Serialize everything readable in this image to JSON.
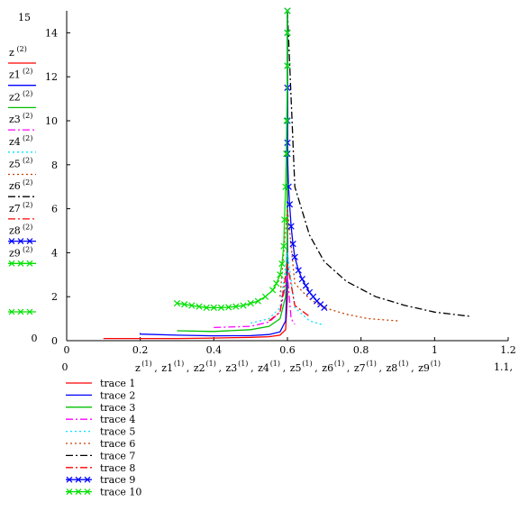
{
  "chart_data": {
    "type": "line",
    "xlim": [
      0,
      1.2
    ],
    "ylim": [
      0,
      15
    ],
    "x_ticks": [
      "0",
      "0.2",
      "0.4",
      "0.6",
      "0.8",
      "1",
      "1.2"
    ],
    "x_tick_values": [
      0,
      0.2,
      0.4,
      0.6,
      0.8,
      1.0,
      1.2
    ],
    "y_ticks": [
      "0",
      "2",
      "4",
      "6",
      "8",
      "10",
      "12",
      "14"
    ],
    "y_tick_values": [
      0,
      2,
      4,
      6,
      8,
      10,
      12,
      14
    ],
    "y_top_label": "15",
    "x_min_label": "0",
    "x_extra_label": "1.1,",
    "xlabel_names": [
      "z",
      "z1",
      "z2",
      "z3",
      "z4",
      "z5",
      "z6",
      "z7",
      "z8",
      "z9"
    ],
    "xlabel_sup": "(1)",
    "ylabel_names": [
      "z",
      "z1",
      "z2",
      "z3",
      "z4",
      "z5",
      "z6",
      "z7",
      "z8",
      "z9"
    ],
    "ylabel_sup": "(2)",
    "grid": false,
    "legend_placement": "bottom-left",
    "series": [
      {
        "name": "trace 1",
        "color": "#ff0000",
        "dash": "solid",
        "marker": "none",
        "x": [
          0.1,
          0.2,
          0.3,
          0.4,
          0.5,
          0.55,
          0.58,
          0.595,
          0.6,
          0.6,
          0.6
        ],
        "y": [
          0.1,
          0.1,
          0.1,
          0.12,
          0.15,
          0.18,
          0.25,
          0.5,
          2,
          8,
          15
        ]
      },
      {
        "name": "trace 2",
        "color": "#0000ff",
        "dash": "solid",
        "marker": "none",
        "x": [
          0.2,
          0.2,
          0.3,
          0.4,
          0.5,
          0.55,
          0.58,
          0.595,
          0.6,
          0.6
        ],
        "y": [
          0.35,
          0.3,
          0.25,
          0.22,
          0.23,
          0.28,
          0.4,
          0.9,
          3,
          15
        ]
      },
      {
        "name": "trace 3",
        "color": "#00c000",
        "dash": "solid",
        "marker": "none",
        "x": [
          0.3,
          0.4,
          0.5,
          0.55,
          0.58,
          0.595,
          0.6,
          0.6
        ],
        "y": [
          0.45,
          0.42,
          0.5,
          0.65,
          1.0,
          2.0,
          5,
          15
        ]
      },
      {
        "name": "trace 4",
        "color": "#ff00ff",
        "dash": "dashdot",
        "marker": "none",
        "x": [
          0.4,
          0.5,
          0.55,
          0.58,
          0.6,
          0.61,
          0.62
        ],
        "y": [
          0.6,
          0.65,
          0.85,
          1.3,
          3,
          1.0,
          0.75
        ]
      },
      {
        "name": "trace 5",
        "color": "#00e5ff",
        "dash": "dot",
        "marker": "none",
        "x": [
          0.5,
          0.55,
          0.58,
          0.6,
          0.62,
          0.66,
          0.7
        ],
        "y": [
          0.8,
          1.0,
          1.5,
          4,
          1.5,
          0.9,
          0.7
        ]
      },
      {
        "name": "trace 6",
        "color": "#c04000",
        "dash": "dot",
        "marker": "none",
        "x": [
          0.58,
          0.6,
          0.62,
          0.66,
          0.7,
          0.76,
          0.82,
          0.9
        ],
        "y": [
          2.0,
          6,
          2.6,
          1.9,
          1.5,
          1.2,
          1.0,
          0.9
        ]
      },
      {
        "name": "trace 7",
        "color": "#000000",
        "dash": "dashdot",
        "marker": "none",
        "x": [
          0.6,
          0.62,
          0.66,
          0.7,
          0.76,
          0.84,
          0.92,
          1.0,
          1.1
        ],
        "y": [
          15,
          7,
          4.8,
          3.6,
          2.7,
          2.0,
          1.6,
          1.3,
          1.1
        ]
      },
      {
        "name": "trace 8",
        "color": "#ff0000",
        "dash": "dashdot",
        "marker": "none",
        "x": [
          0.55,
          0.58,
          0.6,
          0.62,
          0.66
        ],
        "y": [
          0.9,
          1.3,
          3.5,
          1.6,
          1.1
        ]
      },
      {
        "name": "trace 9",
        "color": "#0000ff",
        "dash": "solid",
        "marker": "x",
        "x": [
          0.6,
          0.6,
          0.6,
          0.6,
          0.6,
          0.6,
          0.6,
          0.603,
          0.606,
          0.61,
          0.615,
          0.62,
          0.63,
          0.64,
          0.65,
          0.66,
          0.67,
          0.68,
          0.69,
          0.7
        ],
        "y": [
          15,
          14,
          12.5,
          11.5,
          10,
          9,
          8.5,
          7,
          6.2,
          5.2,
          4.4,
          3.8,
          3.2,
          2.8,
          2.5,
          2.2,
          2.0,
          1.8,
          1.65,
          1.5
        ]
      },
      {
        "name": "trace 10",
        "color": "#00e000",
        "dash": "solid",
        "marker": "x",
        "x": [
          0.3,
          0.32,
          0.34,
          0.36,
          0.38,
          0.4,
          0.42,
          0.44,
          0.46,
          0.48,
          0.5,
          0.52,
          0.54,
          0.56,
          0.57,
          0.58,
          0.585,
          0.59,
          0.592,
          0.595,
          0.597,
          0.598,
          0.6,
          0.6,
          0.6
        ],
        "y": [
          1.7,
          1.65,
          1.6,
          1.55,
          1.5,
          1.5,
          1.5,
          1.52,
          1.55,
          1.6,
          1.7,
          1.8,
          2.0,
          2.3,
          2.6,
          3.0,
          3.5,
          4.3,
          5.5,
          7,
          8.5,
          10,
          12.5,
          14,
          15
        ]
      }
    ]
  }
}
